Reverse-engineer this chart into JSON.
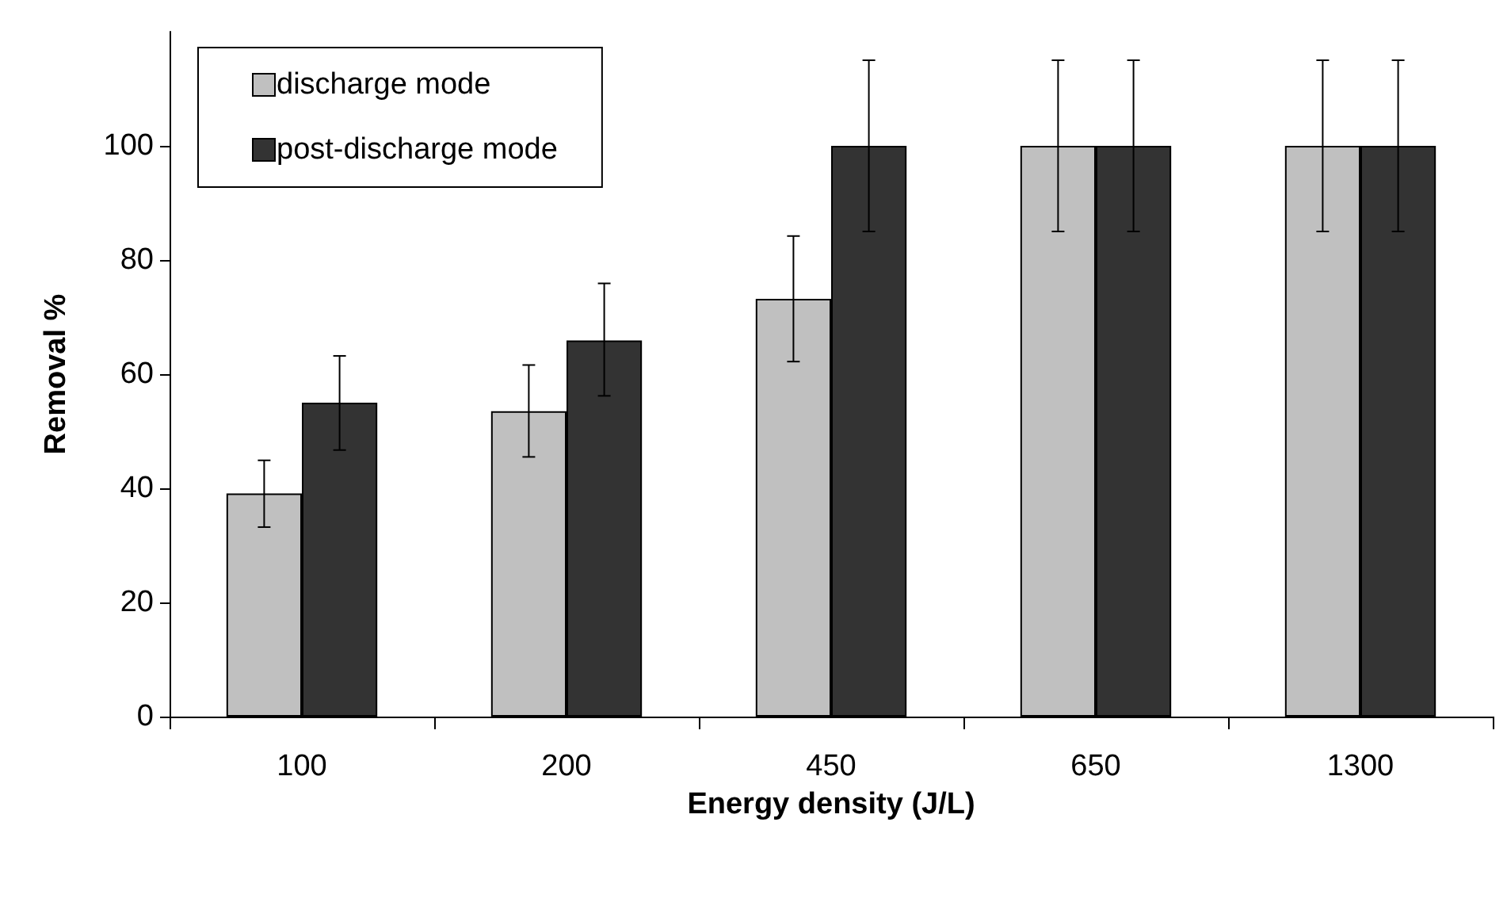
{
  "chart_data": {
    "type": "bar",
    "xlabel": "Energy density (J/L)",
    "ylabel": "Removal %",
    "categories": [
      "100",
      "200",
      "450",
      "650",
      "1300"
    ],
    "series": [
      {
        "name": "discharge mode",
        "color": "#c0c0c0",
        "values": [
          39.1,
          53.5,
          73.2,
          100,
          100
        ],
        "errors": [
          [
            33.2,
            44.9
          ],
          [
            45.5,
            61.6
          ],
          [
            62.2,
            84.2
          ],
          [
            85,
            115
          ],
          [
            85,
            115
          ]
        ]
      },
      {
        "name": "post-discharge mode",
        "color": "#333333",
        "values": [
          55,
          65.9,
          100,
          100,
          100
        ],
        "errors": [
          [
            46.7,
            63.2
          ],
          [
            56.2,
            75.9
          ],
          [
            85,
            115
          ],
          [
            85,
            115
          ],
          [
            85,
            115
          ]
        ]
      }
    ],
    "ylim": [
      0,
      120
    ],
    "yticks": [
      0,
      20,
      40,
      60,
      80,
      100
    ],
    "grid": false,
    "legend": "top left"
  }
}
